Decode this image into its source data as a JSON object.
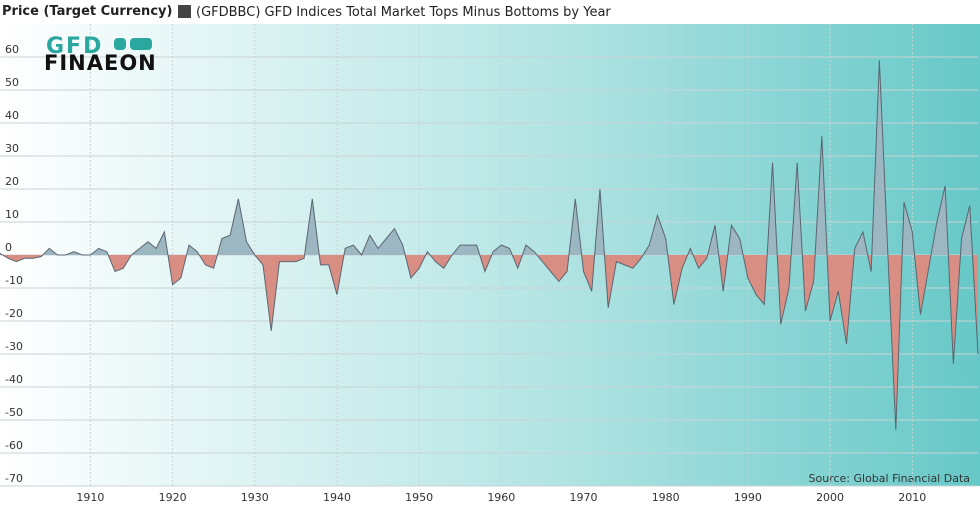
{
  "chart_data": {
    "type": "area",
    "axis_label": "Price (Target Currency)",
    "title": "(GFDBBC) GFD Indices Total Market Tops Minus Bottoms by Year",
    "source": "Source: Global Financial Data",
    "logo": [
      "GFD",
      "FINAEON"
    ],
    "x": [
      1899,
      1900,
      1901,
      1902,
      1903,
      1904,
      1905,
      1906,
      1907,
      1908,
      1909,
      1910,
      1911,
      1912,
      1913,
      1914,
      1915,
      1916,
      1917,
      1918,
      1919,
      1920,
      1921,
      1922,
      1923,
      1924,
      1925,
      1926,
      1927,
      1928,
      1929,
      1930,
      1931,
      1932,
      1933,
      1934,
      1935,
      1936,
      1937,
      1938,
      1939,
      1940,
      1941,
      1942,
      1943,
      1944,
      1945,
      1946,
      1947,
      1948,
      1949,
      1950,
      1951,
      1952,
      1953,
      1954,
      1955,
      1956,
      1957,
      1958,
      1959,
      1960,
      1961,
      1962,
      1963,
      1964,
      1965,
      1966,
      1967,
      1968,
      1969,
      1970,
      1971,
      1972,
      1973,
      1974,
      1975,
      1976,
      1977,
      1978,
      1979,
      1980,
      1981,
      1982,
      1983,
      1984,
      1985,
      1986,
      1987,
      1988,
      1989,
      1990,
      1991,
      1992,
      1993,
      1994,
      1995,
      1996,
      1997,
      1998,
      1999,
      2000,
      2001,
      2002,
      2003,
      2004,
      2005,
      2006,
      2007,
      2008,
      2009,
      2010,
      2011,
      2012,
      2013,
      2014,
      2015,
      2016,
      2017,
      2018
    ],
    "series": [
      {
        "name": "(GFDBBC) GFD Indices Total Market Tops Minus Bottoms by Year",
        "values": [
          0.5,
          -1,
          -2,
          -1,
          -1,
          -0.5,
          2,
          0,
          0,
          1,
          0,
          0,
          2,
          1,
          -5,
          -4,
          0,
          2,
          4,
          2,
          7,
          -9,
          -7,
          3,
          1,
          -3,
          -4,
          5,
          6,
          17,
          4,
          0,
          -3,
          -23,
          -2,
          -2,
          -2,
          -1,
          17,
          -3,
          -3,
          -12,
          2,
          3,
          0,
          6,
          2,
          5,
          8,
          3,
          -7,
          -4,
          1,
          -2,
          -4,
          0,
          3,
          3,
          3,
          -5,
          1,
          3,
          2,
          -4,
          3,
          1,
          -2,
          -5,
          -8,
          -5,
          17,
          -5,
          -11,
          20,
          -16,
          -2,
          -3,
          -4,
          -1,
          3,
          12,
          5,
          -15,
          -4,
          2,
          -4,
          -1,
          9,
          -11,
          9,
          5,
          -7,
          -12,
          -15,
          28,
          -21,
          -10,
          28,
          -17,
          -8,
          36,
          -20,
          -11,
          -27,
          2,
          7,
          -5,
          59,
          2,
          -53,
          16,
          7,
          -18,
          -4,
          10,
          21,
          -33,
          5,
          15,
          -30
        ]
      }
    ],
    "positive_color": "#9cb6c2",
    "negative_color": "#d98e84",
    "line_color": "#5a6670",
    "xlim": [
      1899,
      2018
    ],
    "ylim": [
      -70,
      70
    ],
    "xticks": [
      1910,
      1920,
      1930,
      1940,
      1950,
      1960,
      1970,
      1980,
      1990,
      2000,
      2010
    ],
    "yticks": [
      -70,
      -60,
      -50,
      -40,
      -30,
      -20,
      -10,
      0,
      10,
      20,
      30,
      40,
      50,
      60
    ],
    "grid": true
  }
}
